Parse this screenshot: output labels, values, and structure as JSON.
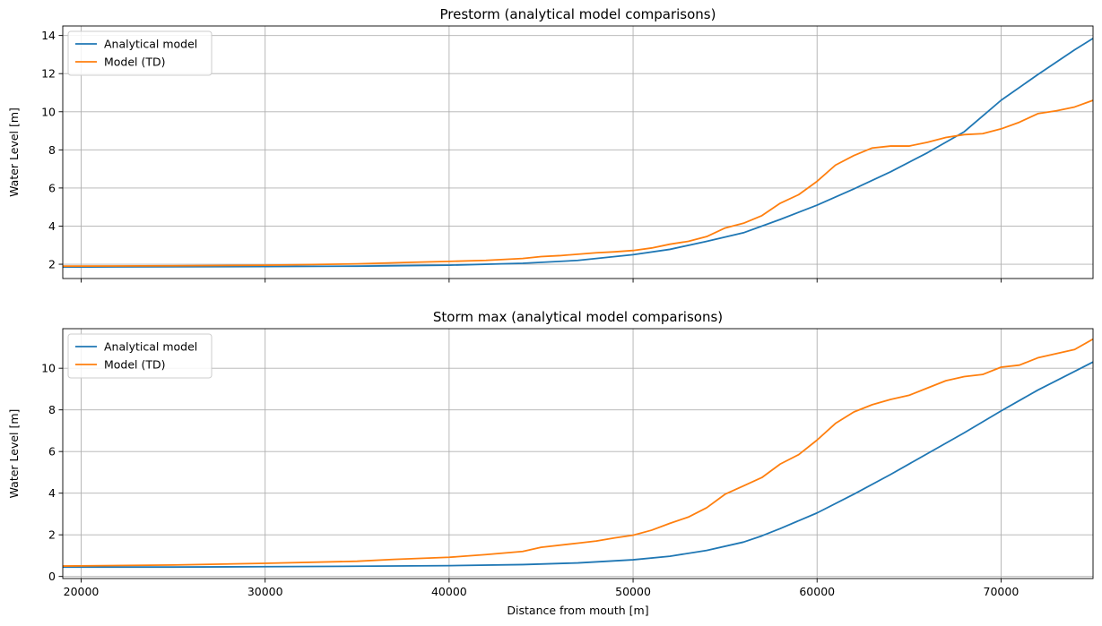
{
  "chart_data": [
    {
      "type": "line",
      "title": "Prestorm (analytical model comparisons)",
      "xlabel": "",
      "ylabel": "Water Level [m]",
      "xlim": [
        19000,
        75000
      ],
      "ylim": [
        1.25,
        14.5
      ],
      "xticks": [
        20000,
        30000,
        40000,
        50000,
        60000,
        70000
      ],
      "xtick_labels_visible": false,
      "yticks": [
        2,
        4,
        6,
        8,
        10,
        12,
        14
      ],
      "grid": true,
      "legend_position": "upper-left",
      "series": [
        {
          "name": "Analytical model",
          "color": "#1f77b4",
          "x": [
            19000,
            25000,
            30000,
            35000,
            40000,
            44000,
            47000,
            50000,
            52000,
            54000,
            56000,
            58000,
            60000,
            62000,
            64000,
            66000,
            68000,
            70000,
            72000,
            74000,
            75000
          ],
          "y": [
            1.85,
            1.87,
            1.88,
            1.9,
            1.95,
            2.05,
            2.2,
            2.5,
            2.78,
            3.2,
            3.65,
            4.35,
            5.1,
            5.95,
            6.85,
            7.85,
            8.95,
            10.6,
            11.95,
            13.25,
            13.85
          ]
        },
        {
          "name": "Model (TD)",
          "color": "#ff7f0e",
          "x": [
            19000,
            25000,
            30000,
            35000,
            38000,
            40000,
            42000,
            44000,
            45000,
            46000,
            48000,
            49000,
            50000,
            51000,
            52000,
            53000,
            54000,
            55000,
            56000,
            57000,
            58000,
            59000,
            60000,
            61000,
            62000,
            63000,
            64000,
            65000,
            66000,
            67000,
            68000,
            69000,
            70000,
            71000,
            72000,
            73000,
            74000,
            75000
          ],
          "y": [
            1.9,
            1.92,
            1.95,
            2.02,
            2.1,
            2.15,
            2.2,
            2.3,
            2.4,
            2.45,
            2.6,
            2.65,
            2.72,
            2.85,
            3.05,
            3.2,
            3.45,
            3.9,
            4.15,
            4.55,
            5.2,
            5.65,
            6.35,
            7.2,
            7.7,
            8.1,
            8.2,
            8.2,
            8.4,
            8.65,
            8.8,
            8.85,
            9.1,
            9.45,
            9.9,
            10.05,
            10.25,
            10.6
          ]
        }
      ]
    },
    {
      "type": "line",
      "title": "Storm max (analytical model comparisons)",
      "xlabel": "Distance from mouth [m]",
      "ylabel": "Water Level [m]",
      "xlim": [
        19000,
        75000
      ],
      "ylim": [
        -0.1,
        11.9
      ],
      "xticks": [
        20000,
        30000,
        40000,
        50000,
        60000,
        70000
      ],
      "xtick_labels_visible": true,
      "yticks": [
        0,
        2,
        4,
        6,
        8,
        10
      ],
      "grid": true,
      "legend_position": "upper-left",
      "series": [
        {
          "name": "Analytical model",
          "color": "#1f77b4",
          "x": [
            19000,
            25000,
            30000,
            35000,
            40000,
            44000,
            47000,
            50000,
            52000,
            54000,
            56000,
            57000,
            58000,
            60000,
            62000,
            64000,
            66000,
            68000,
            70000,
            72000,
            74000,
            75000
          ],
          "y": [
            0.45,
            0.45,
            0.47,
            0.49,
            0.52,
            0.57,
            0.65,
            0.8,
            0.97,
            1.25,
            1.65,
            1.95,
            2.3,
            3.05,
            3.95,
            4.9,
            5.9,
            6.9,
            7.95,
            8.95,
            9.85,
            10.3
          ]
        },
        {
          "name": "Model (TD)",
          "color": "#ff7f0e",
          "x": [
            19000,
            25000,
            30000,
            35000,
            37000,
            40000,
            42000,
            44000,
            45000,
            47000,
            48000,
            49000,
            50000,
            51000,
            52000,
            53000,
            54000,
            55000,
            56000,
            57000,
            58000,
            59000,
            60000,
            61000,
            62000,
            63000,
            64000,
            65000,
            66000,
            67000,
            68000,
            69000,
            70000,
            71000,
            72000,
            73000,
            74000,
            75000
          ],
          "y": [
            0.5,
            0.55,
            0.63,
            0.73,
            0.82,
            0.92,
            1.05,
            1.2,
            1.4,
            1.6,
            1.7,
            1.85,
            1.98,
            2.22,
            2.55,
            2.85,
            3.3,
            3.95,
            4.35,
            4.75,
            5.4,
            5.85,
            6.55,
            7.35,
            7.9,
            8.25,
            8.5,
            8.7,
            9.05,
            9.4,
            9.6,
            9.7,
            10.05,
            10.15,
            10.5,
            10.7,
            10.9,
            11.4
          ]
        }
      ]
    }
  ]
}
